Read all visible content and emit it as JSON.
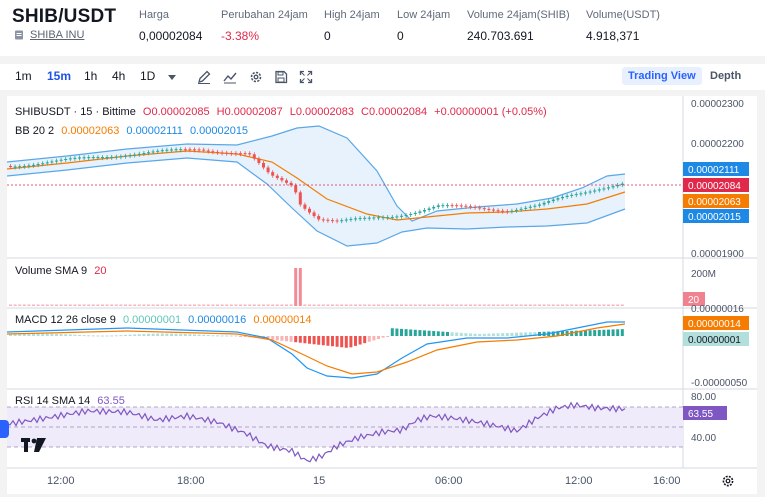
{
  "header": {
    "pair": "SHIB/USDT",
    "pair_name": "SHIBA INU",
    "stats": [
      {
        "label": "Harga",
        "value": "0,00002084"
      },
      {
        "label": "Perubahan 24jam",
        "value": "-3.38%"
      },
      {
        "label": "High 24jam",
        "value": "0"
      },
      {
        "label": "Low 24jam",
        "value": "0"
      },
      {
        "label": "Volume 24jam(SHIB)",
        "value": "240.703.691"
      },
      {
        "label": "Volume(USDT)",
        "value": "4.918,371"
      }
    ]
  },
  "toolbar": {
    "timeframes": [
      "1m",
      "15m",
      "1h",
      "4h",
      "1D"
    ],
    "active_timeframe": "15m",
    "icons": [
      "dropdown-caret-icon",
      "drawing-pencil-icon",
      "indicators-chart-icon",
      "settings-gear-icon",
      "save-disk-icon",
      "fullscreen-icon"
    ],
    "views": [
      "Trading View",
      "Depth"
    ],
    "active_view": "Trading View"
  },
  "legend": {
    "symbol": "SHIBUSDT · 15 · Bittime",
    "open": "O0.00002085",
    "high": "H0.00002087",
    "low": "L0.00002083",
    "close": "C0.00002084",
    "change": "+0.00000001 (+0.05%)",
    "bb_label": "BB 20 2",
    "bb_mid": "0.00002063",
    "bb_upper": "0.00002111",
    "bb_lower": "0.00002015",
    "volume_label": "Volume SMA 9",
    "volume_value": "20",
    "macd_label": "MACD 12 26 close 9",
    "macd_hist": "0.00000001",
    "macd_line": "0.00000016",
    "macd_signal": "0.00000014",
    "rsi_label": "RSI 14 SMA 14",
    "rsi_value": "63.55"
  },
  "axes": {
    "price_ticks": [
      "0.00002300",
      "0.00002200",
      "0.00001900"
    ],
    "price_badges": [
      {
        "text": "0.00002111",
        "color": "#1e88e5"
      },
      {
        "text": "0.00002084",
        "color": "#e0294a"
      },
      {
        "text": "0.00002063",
        "color": "#f57c00"
      },
      {
        "text": "0.00002015",
        "color": "#1e88e5"
      }
    ],
    "volume_tick": "200M",
    "volume_badge": {
      "text": "20",
      "color": "#f0828f"
    },
    "macd_ticks": [
      "0.00000016",
      "-0.00000050"
    ],
    "macd_badges": [
      {
        "text": "0.00000014",
        "color": "#f57c00"
      },
      {
        "text": "0.00000001",
        "color": "#b2dfdb"
      }
    ],
    "rsi_ticks": [
      "80.00",
      "40.00"
    ],
    "rsi_badge": {
      "text": "63.55",
      "color": "#7e57c2"
    },
    "time_ticks": [
      "12:00",
      "18:00",
      "15",
      "06:00",
      "12:00",
      "16:00"
    ]
  },
  "colors": {
    "up": "#26a69a",
    "down": "#ef5350",
    "bb_band": "#5aa7e8",
    "bb_mid": "#f57c00",
    "rsi": "#7e57c2"
  }
}
